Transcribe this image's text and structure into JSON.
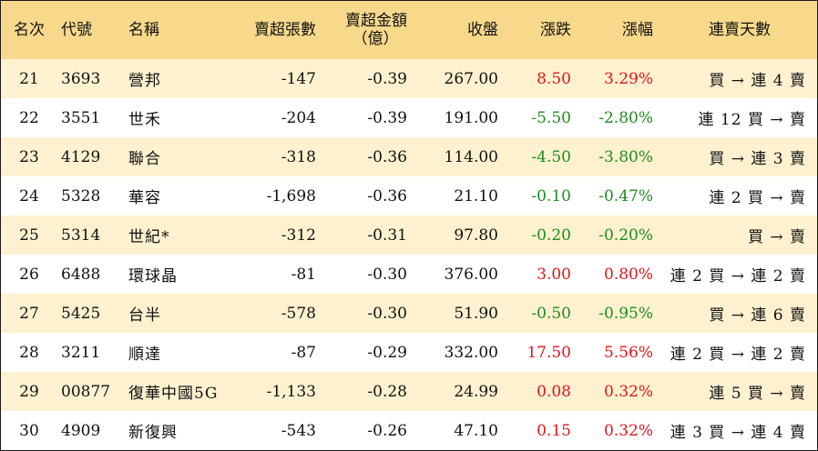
{
  "table": {
    "headers": {
      "rank": "名次",
      "code": "代號",
      "name": "名稱",
      "lots": "賣超張數",
      "amount_line1": "賣超金額",
      "amount_line2": "（億）",
      "close": "收盤",
      "change": "漲跌",
      "pct": "漲幅",
      "streak": "連賣天數"
    },
    "colors": {
      "up": "#e0151b",
      "down": "#1f8a1f",
      "header_bg": "#f8d98c",
      "stripe_bg": "#fdf1cf"
    },
    "rows": [
      {
        "rank": "21",
        "code": "3693",
        "name": "營邦",
        "lots": "-147",
        "amount": "-0.39",
        "close": "267.00",
        "change": "8.50",
        "pct": "3.29%",
        "dir": "up",
        "streak": "買 → 連 4 賣"
      },
      {
        "rank": "22",
        "code": "3551",
        "name": "世禾",
        "lots": "-204",
        "amount": "-0.39",
        "close": "191.00",
        "change": "-5.50",
        "pct": "-2.80%",
        "dir": "down",
        "streak": "連 12 買 → 賣"
      },
      {
        "rank": "23",
        "code": "4129",
        "name": "聯合",
        "lots": "-318",
        "amount": "-0.36",
        "close": "114.00",
        "change": "-4.50",
        "pct": "-3.80%",
        "dir": "down",
        "streak": "買 → 連 3 賣"
      },
      {
        "rank": "24",
        "code": "5328",
        "name": "華容",
        "lots": "-1,698",
        "amount": "-0.36",
        "close": "21.10",
        "change": "-0.10",
        "pct": "-0.47%",
        "dir": "down",
        "streak": "連 2 買 → 賣"
      },
      {
        "rank": "25",
        "code": "5314",
        "name": "世紀*",
        "lots": "-312",
        "amount": "-0.31",
        "close": "97.80",
        "change": "-0.20",
        "pct": "-0.20%",
        "dir": "down",
        "streak": "買 → 賣"
      },
      {
        "rank": "26",
        "code": "6488",
        "name": "環球晶",
        "lots": "-81",
        "amount": "-0.30",
        "close": "376.00",
        "change": "3.00",
        "pct": "0.80%",
        "dir": "up",
        "streak": "連 2 買 → 連 2 賣"
      },
      {
        "rank": "27",
        "code": "5425",
        "name": "台半",
        "lots": "-578",
        "amount": "-0.30",
        "close": "51.90",
        "change": "-0.50",
        "pct": "-0.95%",
        "dir": "down",
        "streak": "買 → 連 6 賣"
      },
      {
        "rank": "28",
        "code": "3211",
        "name": "順達",
        "lots": "-87",
        "amount": "-0.29",
        "close": "332.00",
        "change": "17.50",
        "pct": "5.56%",
        "dir": "up",
        "streak": "連 2 買 → 連 2 賣"
      },
      {
        "rank": "29",
        "code": "00877",
        "name": "復華中國5G",
        "lots": "-1,133",
        "amount": "-0.28",
        "close": "24.99",
        "change": "0.08",
        "pct": "0.32%",
        "dir": "up",
        "streak": "連 5 買 → 賣"
      },
      {
        "rank": "30",
        "code": "4909",
        "name": "新復興",
        "lots": "-543",
        "amount": "-0.26",
        "close": "47.10",
        "change": "0.15",
        "pct": "0.32%",
        "dir": "up",
        "streak": "連 3 買 → 連 4 賣"
      }
    ]
  }
}
